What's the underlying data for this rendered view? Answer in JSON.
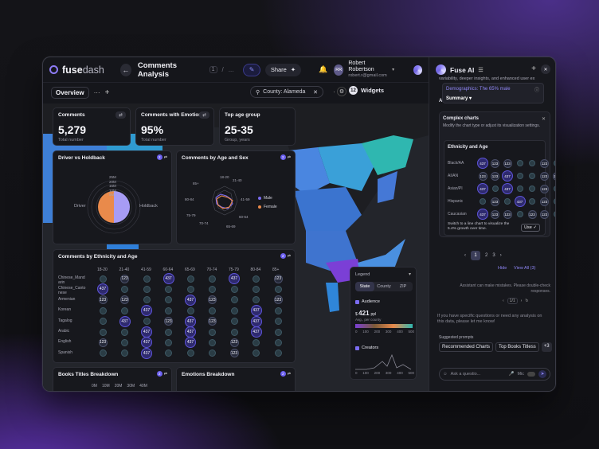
{
  "app": {
    "logo_bold": "fuse",
    "logo_light": "dash",
    "page_title": "Comments Analysis",
    "crumb_num": "1",
    "crumb_more": "..."
  },
  "header": {
    "share_label": "Share",
    "user_initials": "RR",
    "user_name": "Robert Robertson",
    "user_email": "robert.r@gmail.com"
  },
  "toolbar": {
    "tab_label": "Overview",
    "search_value": "County: Alameda",
    "widgets_count": "12",
    "widgets_label": "Widgets"
  },
  "kpis": [
    {
      "title": "Comments",
      "value": "5,279",
      "sub": "Total number"
    },
    {
      "title": "Comments with Emotion",
      "value": "95%",
      "sub": "Total number"
    },
    {
      "title": "Top age group",
      "value": "25-35",
      "sub": "Group, years"
    }
  ],
  "driver": {
    "title": "Driver vs Holdback",
    "left_label": "Driver",
    "right_label": "Holdback",
    "ticks": [
      "25M",
      "20M",
      "15M",
      "10M",
      "5M"
    ],
    "driver_value": 0.5,
    "holdback_value": 0.5
  },
  "age_sex": {
    "title": "Comments by Age and Sex",
    "axes": [
      "18-20",
      "21-40",
      "41-59",
      "60-64",
      "65-69",
      "70-74",
      "75-79",
      "80-84",
      "85+"
    ],
    "legend": [
      "Male",
      "Female"
    ],
    "colors": {
      "male": "#7b6cf2",
      "female": "#e98a4b"
    }
  },
  "ethnicity": {
    "title": "Comments by Ethnicity and Age",
    "columns": [
      "18-20",
      "21-40",
      "41-59",
      "60-64",
      "65-69",
      "70-74",
      "75-79",
      "80-84",
      "85+"
    ],
    "rows": [
      "Chinese_Mand arin",
      "Chinese_Canto nese",
      "Armenian",
      "Korean",
      "Tagalog",
      "Arabic",
      "English",
      "Spanish"
    ],
    "big_value": "437",
    "mid_value": "123"
  },
  "books": {
    "title": "Books Titles Breakdown",
    "ticks": [
      "0M",
      "10M",
      "20M",
      "30M",
      "40M"
    ]
  },
  "emotions": {
    "title": "Emotions Breakdown"
  },
  "legend_panel": {
    "title": "Legend",
    "tabs": [
      "State",
      "County",
      "ZIP"
    ],
    "audience_label": "Audience",
    "audience_value": "421",
    "audience_unit": "ppl",
    "audience_sub": "Avg., per county",
    "audience_ticks": [
      "0",
      "100",
      "200",
      "300",
      "400",
      "500"
    ],
    "creators_label": "Creators",
    "creators_ticks": [
      "0",
      "100",
      "200",
      "300",
      "400",
      "500"
    ]
  },
  "ai": {
    "title": "Fuse AI",
    "intro_text": "variability, deeper insights, and enhanced user ex",
    "dropdown_item": "Demographics: The 65% male",
    "dropdown_selected": "Summary",
    "section_prefix": "Au",
    "complex_title": "Complex charts",
    "complex_desc": "Modify the chart type or adjust its visualization settings.",
    "mini_title": "Ethnicity and Age",
    "mini_rows": [
      "Black/AA",
      "AI/AN",
      "Asian/PI",
      "Hispanic",
      "Caucasian"
    ],
    "mini_big": "437",
    "mini_mid": "123",
    "switch_text": "Switch to a line chart to visualize the 5.4% growth over time.",
    "use_label": "Use",
    "pages": [
      "1",
      "2",
      "3"
    ],
    "hide_label": "Hide",
    "viewall_label": "View All (3)",
    "disclaimer": "Assistant can make mistakes. Please double-check responses.",
    "counter": "1/1",
    "hint": "If you have specific questions or need any analysis on this data, please let me know!",
    "suggested_label": "Suggested prompts",
    "suggestions": [
      "Recommended Charts",
      "Top Books Titless",
      "+3"
    ],
    "input_placeholder": "Ask a questio...",
    "mic_label": "Mic"
  },
  "colors": {
    "accent": "#7b6cf2",
    "map_blue": "#2f7fd9",
    "map_purple": "#7b3fd6",
    "map_teal": "#2fb7b0"
  }
}
